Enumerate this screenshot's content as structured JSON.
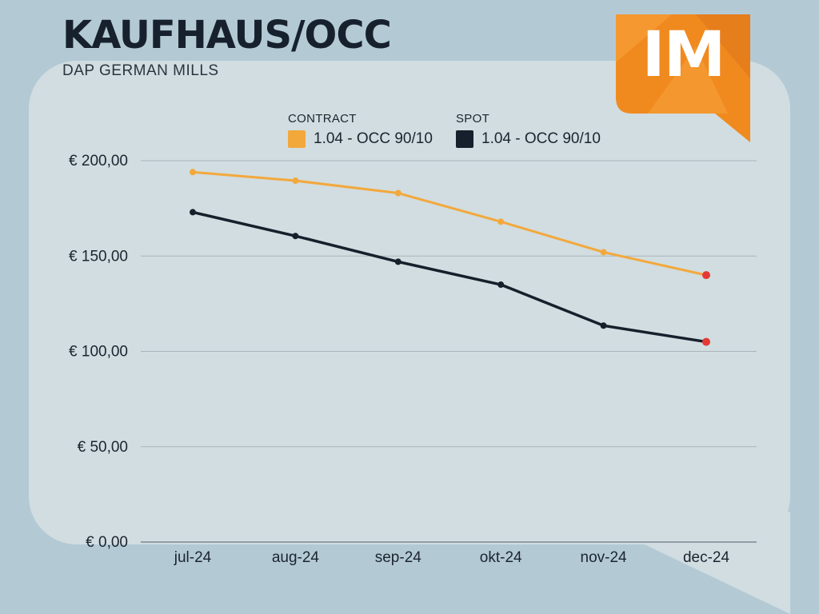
{
  "header": {
    "title": "KAUFHAUS/OCC",
    "subtitle": "DAP GERMAN MILLS",
    "logo_text": "IM"
  },
  "colors": {
    "background": "#b3cad5",
    "panel": "#d1dde0",
    "contract": "#f3a83c",
    "spot": "#16202c",
    "last_point": "#e53935",
    "logo": "#f08a1f"
  },
  "chart_data": {
    "type": "line",
    "categories": [
      "jul-24",
      "aug-24",
      "sep-24",
      "okt-24",
      "nov-24",
      "dec-24"
    ],
    "series": [
      {
        "name": "1.04 - OCC 90/10",
        "group": "CONTRACT",
        "color": "#f3a83c",
        "values": [
          194,
          189.5,
          183,
          168,
          152,
          140
        ]
      },
      {
        "name": "1.04 - OCC 90/10",
        "group": "SPOT",
        "color": "#16202c",
        "values": [
          173,
          160.5,
          147,
          135,
          113.5,
          105
        ]
      }
    ],
    "ylim": [
      0,
      200
    ],
    "yticks": [
      0,
      50,
      100,
      150,
      200
    ],
    "ytick_labels": [
      "€ 0,00",
      "€ 50,00",
      "€ 100,00",
      "€ 150,00",
      "€ 200,00"
    ],
    "grid": true,
    "legend": "top",
    "last_point_highlight": true
  }
}
